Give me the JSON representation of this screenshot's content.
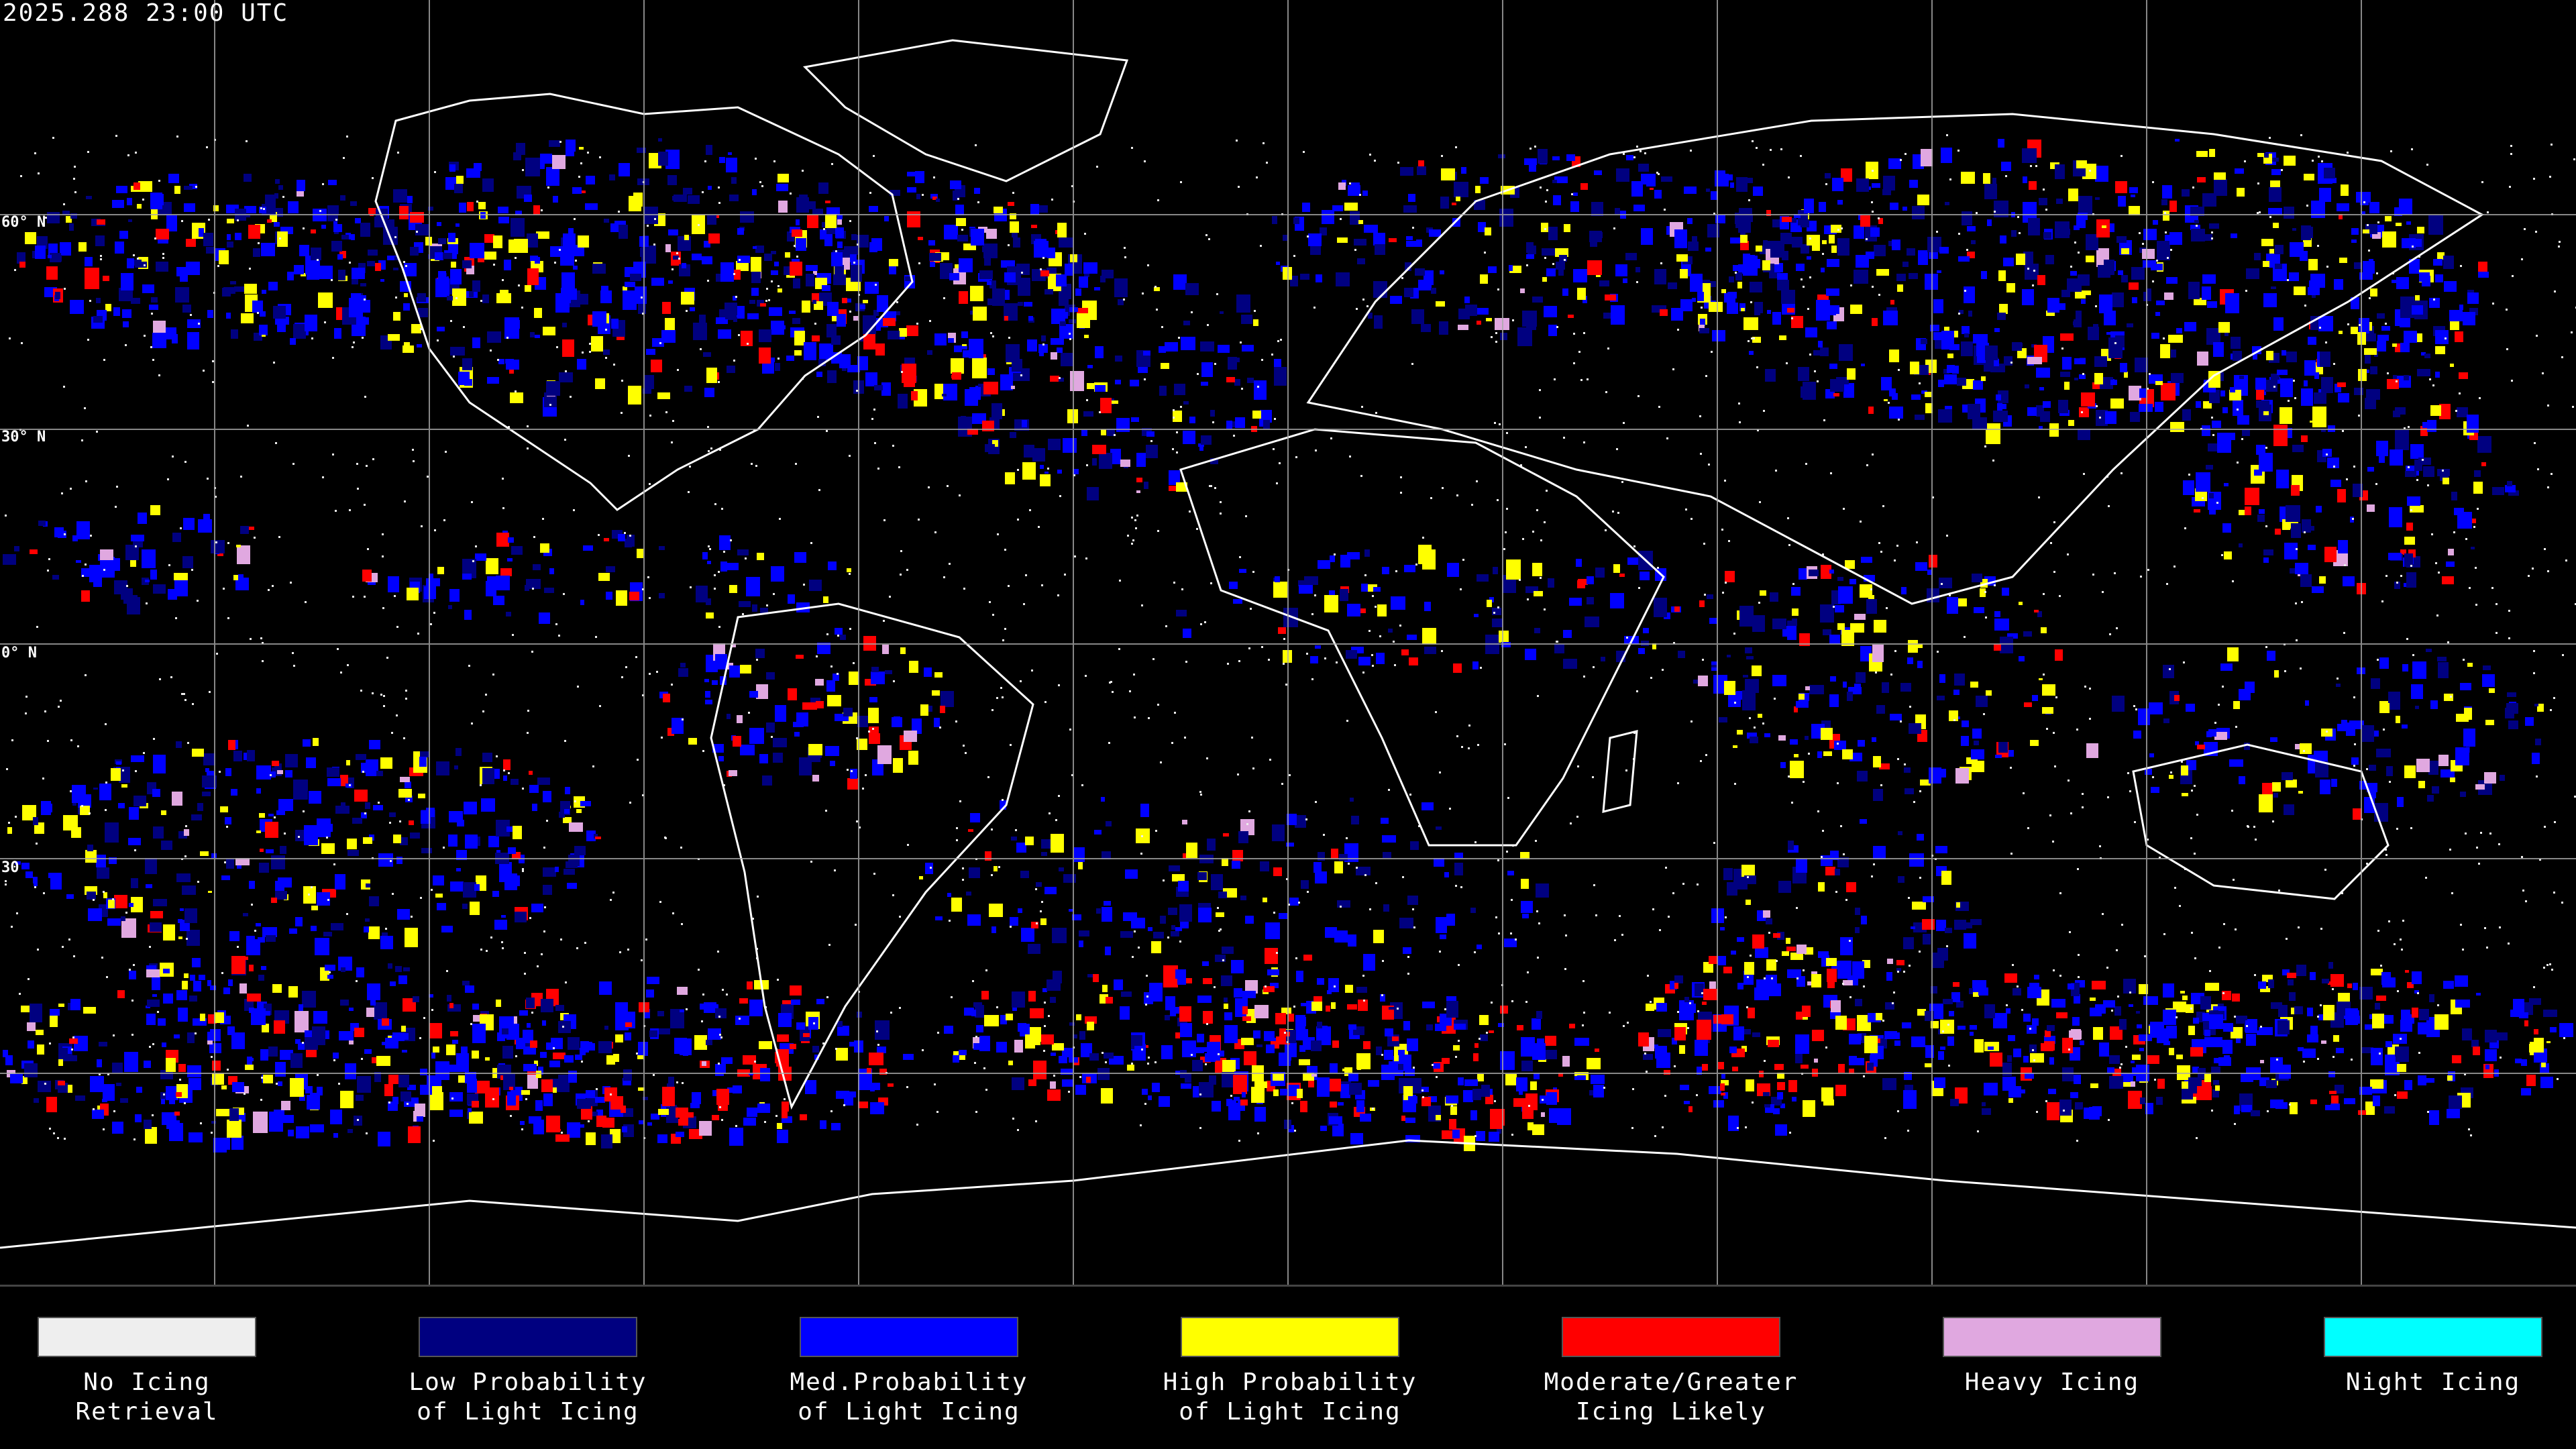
{
  "timestamp": "2025.288 23:00 UTC",
  "lat_labels": {
    "l60": "60° N",
    "l30": "30° N",
    "l0": "0° N",
    "lm30": "30"
  },
  "legend": [
    {
      "label": "No Icing\nRetrieval",
      "color": "#eeeeee"
    },
    {
      "label": "Low Probability\nof Light Icing",
      "color": "#000080"
    },
    {
      "label": "Med.Probability\nof Light Icing",
      "color": "#0000ff"
    },
    {
      "label": "High Probability\nof Light Icing",
      "color": "#ffff00"
    },
    {
      "label": "Moderate/Greater\nIcing Likely",
      "color": "#ff0000"
    },
    {
      "label": "Heavy Icing",
      "color": "#e0a8e0"
    },
    {
      "label": "Night Icing",
      "color": "#00ffff"
    }
  ],
  "colors": {
    "background": "#000000",
    "grid": "#aaaaaa",
    "coastline": "#ffffff"
  }
}
